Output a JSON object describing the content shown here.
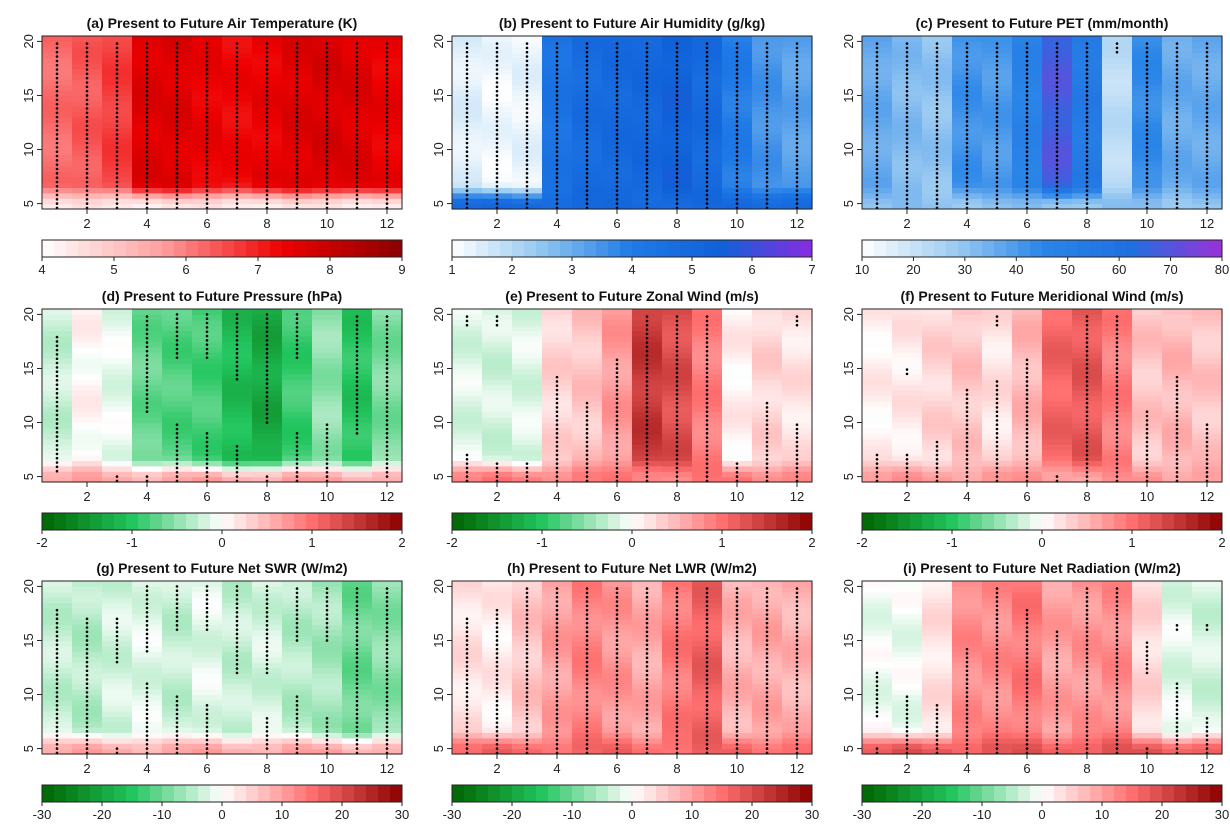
{
  "chart_data": [
    {
      "type": "heatmap",
      "title": "(a) Present to Future Air Temperature (K)",
      "x_ticks": [
        2,
        4,
        6,
        8,
        10,
        12
      ],
      "y_ticks": [
        5,
        10,
        15,
        20
      ],
      "xlim": [
        0.5,
        12.5
      ],
      "ylim": [
        4.5,
        20.5
      ],
      "colorbar": {
        "min": 4,
        "max": 9,
        "ticks": [
          4,
          5,
          6,
          7,
          8,
          9
        ],
        "colors": [
          "#ffffff",
          "#ff9f9f",
          "#ee0000",
          "#8b0000"
        ]
      },
      "months": [
        1,
        2,
        3,
        4,
        5,
        6,
        7,
        8,
        9,
        10,
        11,
        12
      ],
      "profile": [
        6.2,
        6.4,
        6.7,
        7.6,
        7.6,
        7.4,
        7.3,
        7.4,
        7.6,
        7.7,
        7.6,
        7.4
      ],
      "near_surface_value": 4.4,
      "stippled_months": [
        1,
        2,
        3,
        4,
        5,
        6,
        7,
        8,
        9,
        10,
        11,
        12
      ],
      "stipple_ranges": []
    },
    {
      "type": "heatmap",
      "title": "(b) Present to Future Air Humidity (g/kg)",
      "x_ticks": [
        2,
        4,
        6,
        8,
        10,
        12
      ],
      "y_ticks": [
        5,
        10,
        15,
        20
      ],
      "xlim": [
        0.5,
        12.5
      ],
      "ylim": [
        4.5,
        20.5
      ],
      "colorbar": {
        "min": 1,
        "max": 7,
        "ticks": [
          1,
          2,
          3,
          4,
          5,
          6,
          7
        ],
        "colors": [
          "#ffffff",
          "#8fc6f0",
          "#1f7ae6",
          "#1060d8",
          "#8a2be2"
        ]
      },
      "months": [
        1,
        2,
        3,
        4,
        5,
        6,
        7,
        8,
        9,
        10,
        11,
        12
      ],
      "profile": [
        1.4,
        1.2,
        1.3,
        4.4,
        4.8,
        5.0,
        5.1,
        5.4,
        4.9,
        4.0,
        3.5,
        3.2
      ],
      "near_surface_value": 5.0,
      "stippled_months": [
        1,
        2,
        3,
        4,
        5,
        6,
        7,
        8,
        9,
        10,
        11,
        12
      ],
      "stipple_ranges": []
    },
    {
      "type": "heatmap",
      "title": "(c) Present to Future PET (mm/month)",
      "x_ticks": [
        2,
        4,
        6,
        8,
        10,
        12
      ],
      "y_ticks": [
        5,
        10,
        15,
        20
      ],
      "xlim": [
        0.5,
        12.5
      ],
      "ylim": [
        4.5,
        20.5
      ],
      "colorbar": {
        "min": 10,
        "max": 80,
        "ticks": [
          10,
          20,
          30,
          40,
          50,
          60,
          70,
          80
        ],
        "colors": [
          "#ffffff",
          "#9fcdf2",
          "#2b86e8",
          "#1f6fe0",
          "#9b30d9"
        ]
      },
      "months": [
        1,
        2,
        3,
        4,
        5,
        6,
        7,
        8,
        9,
        10,
        11,
        12
      ],
      "profile": [
        36,
        32,
        30,
        42,
        40,
        48,
        68,
        54,
        22,
        44,
        36,
        36
      ],
      "near_surface_value": 30,
      "stippled_months": [
        1,
        2,
        3,
        4,
        5,
        6,
        7,
        8,
        10,
        11,
        12
      ],
      "stipple_ranges": [
        [
          9,
          19,
          20
        ]
      ]
    },
    {
      "type": "heatmap",
      "title": "(d) Present to Future Pressure (hPa)",
      "x_ticks": [
        2,
        4,
        6,
        8,
        10,
        12
      ],
      "y_ticks": [
        5,
        10,
        15,
        20
      ],
      "xlim": [
        0.5,
        12.5
      ],
      "ylim": [
        4.5,
        20.5
      ],
      "colorbar": {
        "min": -2,
        "max": 2,
        "ticks": [
          -2,
          -1,
          0,
          1,
          2
        ],
        "colors": [
          "#006400",
          "#22c55e",
          "#ffffff",
          "#ff6f6f",
          "#8b0000"
        ]
      },
      "months": [
        1,
        2,
        3,
        4,
        5,
        6,
        7,
        8,
        9,
        10,
        11,
        12
      ],
      "profile": [
        -0.25,
        0.05,
        -0.1,
        -0.7,
        -0.8,
        -0.85,
        -1.1,
        -1.3,
        -0.9,
        -0.5,
        -1.0,
        -0.6
      ],
      "near_surface_value": 0.6,
      "stippled_months": [],
      "stipple_ranges": [
        [
          1,
          5.5,
          18
        ],
        [
          3,
          4.6,
          5.2
        ],
        [
          4,
          4.6,
          5.2
        ],
        [
          4,
          11,
          20
        ],
        [
          5,
          4.6,
          10
        ],
        [
          5,
          16,
          20
        ],
        [
          6,
          4.6,
          9
        ],
        [
          6,
          16,
          20
        ],
        [
          7,
          4.6,
          8
        ],
        [
          7,
          14,
          20
        ],
        [
          8,
          4.6,
          5.2
        ],
        [
          8,
          10,
          20
        ],
        [
          9,
          4.6,
          9
        ],
        [
          9,
          16,
          20
        ],
        [
          10,
          4.6,
          10
        ],
        [
          11,
          9,
          20
        ],
        [
          12,
          5,
          20
        ]
      ]
    },
    {
      "type": "heatmap",
      "title": "(e) Present to Future Zonal Wind (m/s)",
      "x_ticks": [
        2,
        4,
        6,
        8,
        10,
        12
      ],
      "y_ticks": [
        5,
        10,
        15,
        20
      ],
      "xlim": [
        0.5,
        12.5
      ],
      "ylim": [
        4.5,
        20.5
      ],
      "colorbar": {
        "min": -2,
        "max": 2,
        "ticks": [
          -2,
          -1,
          0,
          1,
          2
        ],
        "colors": [
          "#006400",
          "#22c55e",
          "#ffffff",
          "#ff6f6f",
          "#8b0000"
        ]
      },
      "months": [
        1,
        2,
        3,
        4,
        5,
        6,
        7,
        8,
        9,
        10,
        11,
        12
      ],
      "profile": [
        -0.15,
        -0.2,
        -0.15,
        0.3,
        0.4,
        0.7,
        1.5,
        1.3,
        0.9,
        0.1,
        0.3,
        0.2
      ],
      "near_surface_value": 0.9,
      "stippled_months": [],
      "stipple_ranges": [
        [
          1,
          4.6,
          7
        ],
        [
          1,
          19,
          20
        ],
        [
          2,
          4.6,
          6.5
        ],
        [
          2,
          19,
          20
        ],
        [
          3,
          4.6,
          6.5
        ],
        [
          4,
          4.6,
          14.5
        ],
        [
          5,
          4.6,
          12
        ],
        [
          6,
          4.6,
          16
        ],
        [
          7,
          4.6,
          20
        ],
        [
          8,
          4.6,
          20
        ],
        [
          9,
          4.6,
          20
        ],
        [
          10,
          4.6,
          6.5
        ],
        [
          11,
          4.6,
          12
        ],
        [
          12,
          4.6,
          10
        ],
        [
          12,
          19,
          20
        ]
      ]
    },
    {
      "type": "heatmap",
      "title": "(f) Present to Future Meridional Wind (m/s)",
      "x_ticks": [
        2,
        4,
        6,
        8,
        10,
        12
      ],
      "y_ticks": [
        5,
        10,
        15,
        20
      ],
      "xlim": [
        0.5,
        12.5
      ],
      "ylim": [
        4.5,
        20.5
      ],
      "colorbar": {
        "min": -2,
        "max": 2,
        "ticks": [
          -2,
          -1,
          0,
          1,
          2
        ],
        "colors": [
          "#006400",
          "#22c55e",
          "#ffffff",
          "#ff6f6f",
          "#8b0000"
        ]
      },
      "months": [
        1,
        2,
        3,
        4,
        5,
        6,
        7,
        8,
        9,
        10,
        11,
        12
      ],
      "profile": [
        0.1,
        0.15,
        0.3,
        0.4,
        0.2,
        0.5,
        1.1,
        1.2,
        0.9,
        0.4,
        0.5,
        0.4
      ],
      "near_surface_value": 0.7,
      "stippled_months": [],
      "stipple_ranges": [
        [
          1,
          4.6,
          7
        ],
        [
          2,
          4.6,
          7
        ],
        [
          2,
          14.5,
          15
        ],
        [
          3,
          4.6,
          8.5
        ],
        [
          4,
          4.6,
          13
        ],
        [
          5,
          4.6,
          14
        ],
        [
          5,
          19,
          20
        ],
        [
          6,
          4.6,
          16
        ],
        [
          7,
          4.6,
          5.2
        ],
        [
          8,
          4.6,
          20
        ],
        [
          9,
          4.6,
          20
        ],
        [
          10,
          4.6,
          11
        ],
        [
          11,
          4.6,
          14.5
        ],
        [
          12,
          4.6,
          10
        ]
      ]
    },
    {
      "type": "heatmap",
      "title": "(g) Present to Future Net SWR (W/m2)",
      "x_ticks": [
        2,
        4,
        6,
        8,
        10,
        12
      ],
      "y_ticks": [
        5,
        10,
        15,
        20
      ],
      "xlim": [
        0.5,
        12.5
      ],
      "ylim": [
        4.5,
        20.5
      ],
      "colorbar": {
        "min": -30,
        "max": 30,
        "ticks": [
          -30,
          -20,
          -10,
          0,
          10,
          20,
          30
        ],
        "colors": [
          "#006400",
          "#22c55e",
          "#ffffff",
          "#ff6f6f",
          "#8b0000"
        ]
      },
      "months": [
        1,
        2,
        3,
        4,
        5,
        6,
        7,
        8,
        9,
        10,
        11,
        12
      ],
      "profile": [
        -4,
        -5,
        -3,
        -2,
        -4,
        -2,
        -4,
        -3,
        -5,
        -6,
        -10,
        -8
      ],
      "near_surface_value": 9,
      "stippled_months": [],
      "stipple_ranges": [
        [
          1,
          4.6,
          18
        ],
        [
          2,
          4.6,
          17
        ],
        [
          3,
          4.6,
          5
        ],
        [
          3,
          13,
          17
        ],
        [
          4,
          4.6,
          11
        ],
        [
          4,
          14,
          20
        ],
        [
          5,
          4.6,
          10
        ],
        [
          5,
          16,
          20
        ],
        [
          6,
          4.6,
          9
        ],
        [
          6,
          16,
          20
        ],
        [
          7,
          12,
          20
        ],
        [
          8,
          5,
          8
        ],
        [
          8,
          12,
          20
        ],
        [
          9,
          4.6,
          10
        ],
        [
          9,
          15,
          20
        ],
        [
          10,
          4.6,
          8
        ],
        [
          10,
          15,
          20
        ],
        [
          11,
          4.6,
          20
        ],
        [
          12,
          4.6,
          20
        ]
      ]
    },
    {
      "type": "heatmap",
      "title": "(h) Present to Future Net LWR (W/m2)",
      "x_ticks": [
        2,
        4,
        6,
        8,
        10,
        12
      ],
      "y_ticks": [
        5,
        10,
        15,
        20
      ],
      "xlim": [
        0.5,
        12.5
      ],
      "ylim": [
        4.5,
        20.5
      ],
      "colorbar": {
        "min": -30,
        "max": 30,
        "ticks": [
          -30,
          -20,
          -10,
          0,
          10,
          20,
          30
        ],
        "colors": [
          "#006400",
          "#22c55e",
          "#ffffff",
          "#ff6f6f",
          "#8b0000"
        ]
      },
      "months": [
        1,
        2,
        3,
        4,
        5,
        6,
        7,
        8,
        9,
        10,
        11,
        12
      ],
      "profile": [
        3,
        2,
        6,
        10,
        13,
        11,
        9,
        14,
        17,
        8,
        9,
        8
      ],
      "near_surface_value": 16,
      "stippled_months": [],
      "stipple_ranges": [
        [
          1,
          4.6,
          17
        ],
        [
          2,
          4.6,
          18
        ],
        [
          3,
          4.6,
          20
        ],
        [
          4,
          4.6,
          20
        ],
        [
          5,
          4.6,
          20
        ],
        [
          6,
          4.6,
          20
        ],
        [
          7,
          4.6,
          20
        ],
        [
          8,
          4.6,
          20
        ],
        [
          9,
          4.6,
          20
        ],
        [
          10,
          4.6,
          20
        ],
        [
          11,
          4.6,
          20
        ],
        [
          12,
          4.6,
          20
        ]
      ]
    },
    {
      "type": "heatmap",
      "title": "(i) Present to Future Net Radiation (W/m2)",
      "x_ticks": [
        2,
        4,
        6,
        8,
        10,
        12
      ],
      "y_ticks": [
        5,
        10,
        15,
        20
      ],
      "xlim": [
        0.5,
        12.5
      ],
      "ylim": [
        4.5,
        20.5
      ],
      "colorbar": {
        "min": -30,
        "max": 30,
        "ticks": [
          -30,
          -20,
          -10,
          0,
          10,
          20,
          30
        ],
        "colors": [
          "#006400",
          "#22c55e",
          "#ffffff",
          "#ff6f6f",
          "#8b0000"
        ]
      },
      "months": [
        1,
        2,
        3,
        4,
        5,
        6,
        7,
        8,
        9,
        10,
        11,
        12
      ],
      "profile": [
        -1,
        -1,
        3,
        12,
        12,
        14,
        10,
        11,
        12,
        4,
        -2,
        -3
      ],
      "near_surface_value": 18,
      "stippled_months": [],
      "stipple_ranges": [
        [
          1,
          4.6,
          5.2
        ],
        [
          1,
          8,
          12
        ],
        [
          2,
          4.6,
          10
        ],
        [
          3,
          4.6,
          9
        ],
        [
          4,
          4.6,
          14.5
        ],
        [
          5,
          4.6,
          20
        ],
        [
          6,
          4.6,
          18
        ],
        [
          7,
          4.6,
          16
        ],
        [
          8,
          4.6,
          20
        ],
        [
          9,
          4.6,
          20
        ],
        [
          10,
          4.6,
          5
        ],
        [
          10,
          12,
          15
        ],
        [
          11,
          4.6,
          11
        ],
        [
          11,
          16,
          16.7
        ],
        [
          12,
          4.6,
          8
        ],
        [
          12,
          16,
          16.7
        ]
      ]
    }
  ]
}
